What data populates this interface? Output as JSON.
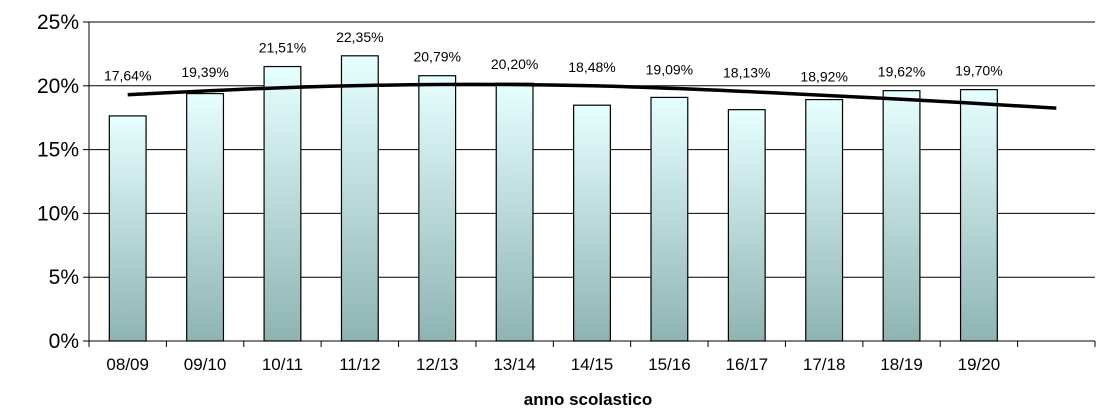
{
  "chart_data": {
    "type": "bar",
    "title": "",
    "xlabel": "anno scolastico",
    "ylabel": "",
    "categories": [
      "08/09",
      "09/10",
      "10/11",
      "11/12",
      "12/13",
      "13/14",
      "14/15",
      "15/16",
      "16/17",
      "17/18",
      "18/19",
      "19/20"
    ],
    "values": [
      17.64,
      19.39,
      21.51,
      22.35,
      20.79,
      20.2,
      18.48,
      19.09,
      18.13,
      18.92,
      19.62,
      19.7
    ],
    "data_labels": [
      "17,64%",
      "19,39%",
      "21,51%",
      "22,35%",
      "20,79%",
      "20,20%",
      "18,48%",
      "19,09%",
      "18,13%",
      "18,92%",
      "19,62%",
      "19,70%"
    ],
    "ylim": [
      0,
      25
    ],
    "y_ticks": [
      0,
      5,
      10,
      15,
      20,
      25
    ],
    "y_tick_labels": [
      "0%",
      "5%",
      "10%",
      "15%",
      "20%",
      "25%"
    ],
    "grid": "horizontal",
    "legend": "none",
    "trendline": {
      "type": "polynomial",
      "approx_points": [
        {
          "x": 0.5,
          "y": 19.3
        },
        {
          "x": 2.5,
          "y": 19.85
        },
        {
          "x": 4.5,
          "y": 20.1
        },
        {
          "x": 6.5,
          "y": 20.0
        },
        {
          "x": 8.5,
          "y": 19.55
        },
        {
          "x": 10.5,
          "y": 18.95
        },
        {
          "x": 12.5,
          "y": 18.25
        }
      ]
    },
    "colors": {
      "bar_top": "#E6FFFF",
      "bar_bottom": "#8FB3B3",
      "bar_stroke": "#000000",
      "trendline": "#000000",
      "grid": "#000000",
      "axis": "#000000"
    }
  }
}
